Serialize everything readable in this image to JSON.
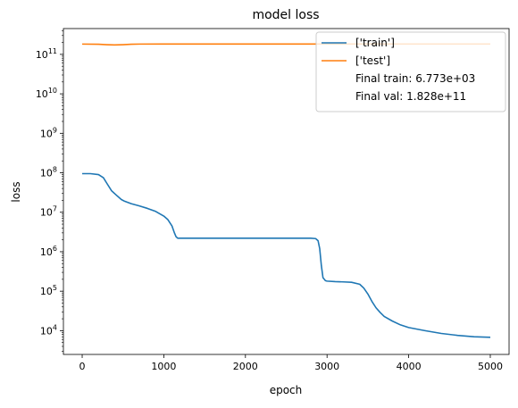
{
  "chart_data": {
    "type": "line",
    "title": "model loss",
    "xlabel": "epoch",
    "ylabel": "loss",
    "xlim": [
      -230,
      5230
    ],
    "ylim": [
      2500,
      450000000000
    ],
    "yscale": "log",
    "grid": false,
    "legend_position": "top-right",
    "x_ticks": [
      0,
      1000,
      2000,
      3000,
      4000,
      5000
    ],
    "y_ticks": [
      {
        "value": 10000,
        "base": "10",
        "exp": "4"
      },
      {
        "value": 100000,
        "base": "10",
        "exp": "5"
      },
      {
        "value": 1000000,
        "base": "10",
        "exp": "6"
      },
      {
        "value": 10000000,
        "base": "10",
        "exp": "7"
      },
      {
        "value": 100000000,
        "base": "10",
        "exp": "8"
      },
      {
        "value": 1000000000,
        "base": "10",
        "exp": "9"
      },
      {
        "value": 10000000000,
        "base": "10",
        "exp": "10"
      },
      {
        "value": 100000000000,
        "base": "10",
        "exp": "11"
      }
    ],
    "legend": [
      {
        "label": "['train']",
        "color": "#1f77b4"
      },
      {
        "label": "['test']",
        "color": "#ff7f0e"
      },
      {
        "label": "Final train: 6.773e+03",
        "color": "none"
      },
      {
        "label": "Final val: 1.828e+11",
        "color": "none"
      }
    ],
    "series": [
      {
        "color": "#1f77b4",
        "x": [
          0,
          100,
          200,
          260,
          300,
          360,
          420,
          480,
          520,
          600,
          700,
          800,
          900,
          1000,
          1050,
          1100,
          1130,
          1150,
          1170,
          1200,
          1400,
          1800,
          2200,
          2600,
          2800,
          2860,
          2890,
          2910,
          2930,
          2950,
          2980,
          3000,
          3100,
          3200,
          3300,
          3400,
          3450,
          3500,
          3550,
          3600,
          3650,
          3700,
          3800,
          3900,
          4000,
          4200,
          4400,
          4600,
          4800,
          5000
        ],
        "y": [
          95000000,
          95000000,
          90000000,
          75000000,
          55000000,
          35000000,
          27000000,
          21000000,
          19000000,
          16500000,
          14500000,
          12500000,
          10500000,
          8000000,
          6500000,
          4500000,
          3000000,
          2400000,
          2200000,
          2200000,
          2200000,
          2200000,
          2200000,
          2200000,
          2200000,
          2150000,
          1900000,
          1200000,
          450000,
          220000,
          185000,
          180000,
          175000,
          172000,
          168000,
          150000,
          120000,
          85000,
          55000,
          38000,
          29000,
          23000,
          17500,
          14000,
          12000,
          10000,
          8500,
          7600,
          7000,
          6773
        ]
      },
      {
        "color": "#ff7f0e",
        "x": [
          0,
          200,
          300,
          400,
          500,
          600,
          700,
          1000,
          2000,
          3000,
          4000,
          5000
        ],
        "y": [
          182000000000,
          180000000000,
          176000000000,
          173000000000,
          176000000000,
          180000000000,
          182000000000,
          182800000000,
          182800000000,
          182800000000,
          182800000000,
          182800000000
        ]
      }
    ]
  }
}
